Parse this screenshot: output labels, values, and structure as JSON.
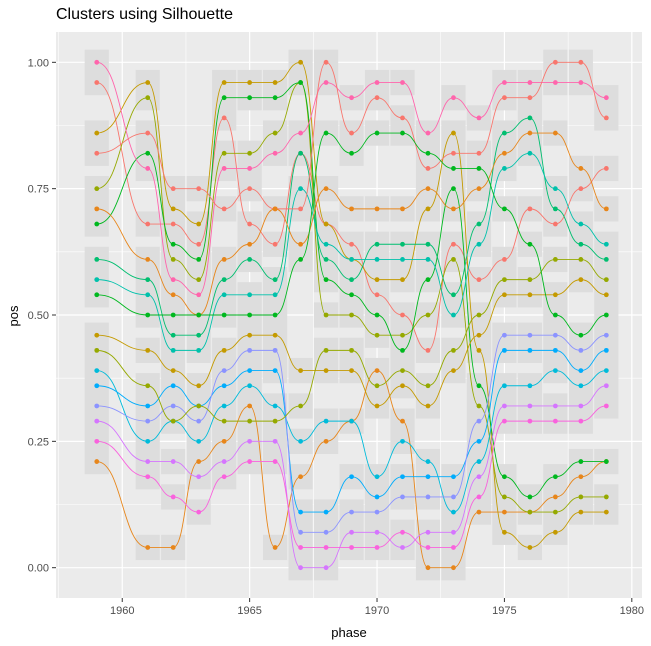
{
  "chart_data": {
    "type": "line",
    "title": "Clusters using Silhouette",
    "xlabel": "phase",
    "ylabel": "pos",
    "xlim": [
      1957.4,
      1980.4
    ],
    "ylim": [
      -0.06,
      1.06
    ],
    "x_ticks": [
      "1960",
      "1965",
      "1970",
      "1975",
      "1980"
    ],
    "y_ticks": [
      "0.00",
      "0.25",
      "0.50",
      "0.75",
      "1.00"
    ],
    "grid": true,
    "legend": "none",
    "x": [
      1959,
      1961,
      1962,
      1963,
      1964,
      1965,
      1966,
      1967,
      1968,
      1969,
      1970,
      1971,
      1972,
      1973,
      1974,
      1975,
      1976,
      1977,
      1978,
      1979
    ],
    "colors": [
      "#F8766D",
      "#E7861B",
      "#C49A00",
      "#95A900",
      "#00B81F",
      "#00BE70",
      "#00C1AB",
      "#00BBDA",
      "#00ACFC",
      "#8B93FF",
      "#D575FE",
      "#F962DD",
      "#FF65AC"
    ],
    "series": [
      {
        "values": [
          0.96,
          0.68,
          0.68,
          0.64,
          0.89,
          0.68,
          0.64,
          0.82,
          0.68,
          0.64,
          0.54,
          0.5,
          0.43,
          0.64,
          0.57,
          0.61,
          0.71,
          0.68,
          0.75,
          0.79
        ]
      },
      {
        "values": [
          0.21,
          0.04,
          0.04,
          0.21,
          0.25,
          0.32,
          0.04,
          0.18,
          0.25,
          0.29,
          0.39,
          0.29,
          0.0,
          0.0,
          0.11,
          0.11,
          0.11,
          0.14,
          0.18,
          0.21
        ]
      },
      {
        "values": [
          0.86,
          0.96,
          0.71,
          0.68,
          0.96,
          0.96,
          0.96,
          1.0,
          0.68,
          0.61,
          0.57,
          0.57,
          0.71,
          0.86,
          0.43,
          0.07,
          0.04,
          0.07,
          0.11,
          0.11
        ]
      },
      {
        "values": [
          0.75,
          0.93,
          0.61,
          0.57,
          0.82,
          0.82,
          0.86,
          0.96,
          0.5,
          0.5,
          0.46,
          0.46,
          0.5,
          0.61,
          0.32,
          0.14,
          0.11,
          0.11,
          0.14,
          0.14
        ]
      },
      {
        "values": [
          0.68,
          0.82,
          0.64,
          0.61,
          0.93,
          0.93,
          0.93,
          0.96,
          0.57,
          0.54,
          0.5,
          0.43,
          0.57,
          0.75,
          0.36,
          0.18,
          0.14,
          0.18,
          0.21,
          0.21
        ]
      },
      {
        "values": [
          0.61,
          0.57,
          0.46,
          0.46,
          0.57,
          0.61,
          0.57,
          0.82,
          0.61,
          0.57,
          0.64,
          0.64,
          0.64,
          0.54,
          0.68,
          0.86,
          0.89,
          0.71,
          0.64,
          0.61
        ]
      },
      {
        "values": [
          0.57,
          0.54,
          0.43,
          0.43,
          0.54,
          0.54,
          0.54,
          0.75,
          0.64,
          0.61,
          0.61,
          0.61,
          0.61,
          0.5,
          0.64,
          0.79,
          0.82,
          0.75,
          0.68,
          0.64
        ]
      },
      {
        "values": [
          0.39,
          0.25,
          0.29,
          0.25,
          0.32,
          0.36,
          0.32,
          0.25,
          0.29,
          0.29,
          0.18,
          0.25,
          0.21,
          0.11,
          0.21,
          0.36,
          0.36,
          0.39,
          0.36,
          0.39
        ]
      },
      {
        "values": [
          0.36,
          0.32,
          0.36,
          0.32,
          0.36,
          0.39,
          0.39,
          0.11,
          0.11,
          0.18,
          0.14,
          0.18,
          0.18,
          0.18,
          0.25,
          0.43,
          0.43,
          0.43,
          0.39,
          0.43
        ]
      },
      {
        "values": [
          0.32,
          0.29,
          0.32,
          0.29,
          0.39,
          0.43,
          0.43,
          0.07,
          0.07,
          0.11,
          0.11,
          0.14,
          0.14,
          0.14,
          0.29,
          0.46,
          0.46,
          0.46,
          0.43,
          0.46
        ]
      },
      {
        "values": [
          0.29,
          0.21,
          0.21,
          0.18,
          0.21,
          0.25,
          0.25,
          0.0,
          0.0,
          0.07,
          0.07,
          0.04,
          0.07,
          0.07,
          0.18,
          0.32,
          0.32,
          0.32,
          0.32,
          0.36
        ]
      },
      {
        "values": [
          0.25,
          0.18,
          0.14,
          0.11,
          0.18,
          0.21,
          0.21,
          0.04,
          0.04,
          0.04,
          0.04,
          0.07,
          0.04,
          0.04,
          0.14,
          0.29,
          0.29,
          0.29,
          0.29,
          0.32
        ]
      },
      {
        "values": [
          1.0,
          0.79,
          0.57,
          0.54,
          0.79,
          0.79,
          0.82,
          0.86,
          0.96,
          0.93,
          0.96,
          0.96,
          0.86,
          0.93,
          0.89,
          0.96,
          0.96,
          0.96,
          0.96,
          0.93
        ]
      },
      {
        "values": [
          0.82,
          0.86,
          0.75,
          0.75,
          0.71,
          0.75,
          0.71,
          0.71,
          1.0,
          0.86,
          0.93,
          0.89,
          0.79,
          0.82,
          0.82,
          0.93,
          0.93,
          1.0,
          1.0,
          0.89
        ]
      },
      {
        "values": [
          0.71,
          0.61,
          0.54,
          0.5,
          0.61,
          0.64,
          0.71,
          0.64,
          0.75,
          0.71,
          0.71,
          0.71,
          0.75,
          0.71,
          0.75,
          0.82,
          0.86,
          0.86,
          0.79,
          0.71
        ]
      },
      {
        "values": [
          0.46,
          0.43,
          0.39,
          0.36,
          0.43,
          0.46,
          0.46,
          0.39,
          0.39,
          0.39,
          0.32,
          0.36,
          0.32,
          0.39,
          0.46,
          0.54,
          0.54,
          0.54,
          0.57,
          0.54
        ]
      },
      {
        "values": [
          0.43,
          0.36,
          0.29,
          0.32,
          0.29,
          0.29,
          0.29,
          0.32,
          0.43,
          0.43,
          0.36,
          0.39,
          0.36,
          0.43,
          0.5,
          0.57,
          0.57,
          0.61,
          0.61,
          0.57
        ]
      },
      {
        "values": [
          0.54,
          0.5,
          0.5,
          0.5,
          0.5,
          0.5,
          0.5,
          0.61,
          0.86,
          0.82,
          0.86,
          0.86,
          0.82,
          0.79,
          0.79,
          0.71,
          0.64,
          0.5,
          0.46,
          0.5
        ]
      }
    ]
  }
}
